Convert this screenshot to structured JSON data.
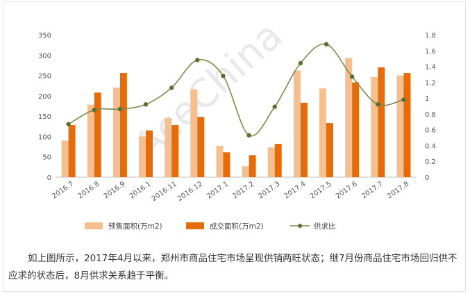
{
  "chart_data": {
    "type": "bar",
    "categories": [
      "2016.7",
      "2016.8",
      "2016.9",
      "2016.1",
      "2016.11",
      "2016.12",
      "2017.1",
      "2017.2",
      "2017.3",
      "2017.4",
      "2017.5",
      "2017.6",
      "2017.7",
      "2017.8"
    ],
    "series": [
      {
        "name": "预售面积(万m2)",
        "type": "bar",
        "axis": "left",
        "color": "#f6bf8f",
        "values": [
          90,
          178,
          220,
          100,
          145,
          216,
          77,
          27,
          73,
          262,
          218,
          293,
          246,
          250
        ]
      },
      {
        "name": "成交面积(万m2)",
        "type": "bar",
        "axis": "left",
        "color": "#e46c0a",
        "values": [
          128,
          208,
          256,
          115,
          128,
          148,
          61,
          54,
          82,
          183,
          133,
          233,
          270,
          256
        ]
      },
      {
        "name": "供求比",
        "type": "line",
        "axis": "right",
        "color": "#7a8b4a",
        "values": [
          0.67,
          0.85,
          0.86,
          0.92,
          1.13,
          1.48,
          1.28,
          0.53,
          0.89,
          1.44,
          1.68,
          1.27,
          0.92,
          0.98
        ]
      }
    ],
    "y_left": {
      "min": 0,
      "max": 350,
      "ticks": [
        "0",
        "50",
        "100",
        "150",
        "200",
        "250",
        "300",
        "350"
      ]
    },
    "y_right": {
      "min": 0,
      "max": 1.8,
      "ticks": [
        "0",
        "0.2",
        "0.4",
        "0.6",
        "0.8",
        "1",
        "1.2",
        "1.4",
        "1.6",
        "1.8"
      ]
    },
    "grid": false,
    "legend_position": "bottom"
  },
  "watermark": "AceChina",
  "caption": "如上图所示，2017年4月以来，郑州市商品住宅市场呈现供销两旺状态；继7月份商品住宅市场回归供不应求的状态后，8月供求关系趋于平衡。"
}
